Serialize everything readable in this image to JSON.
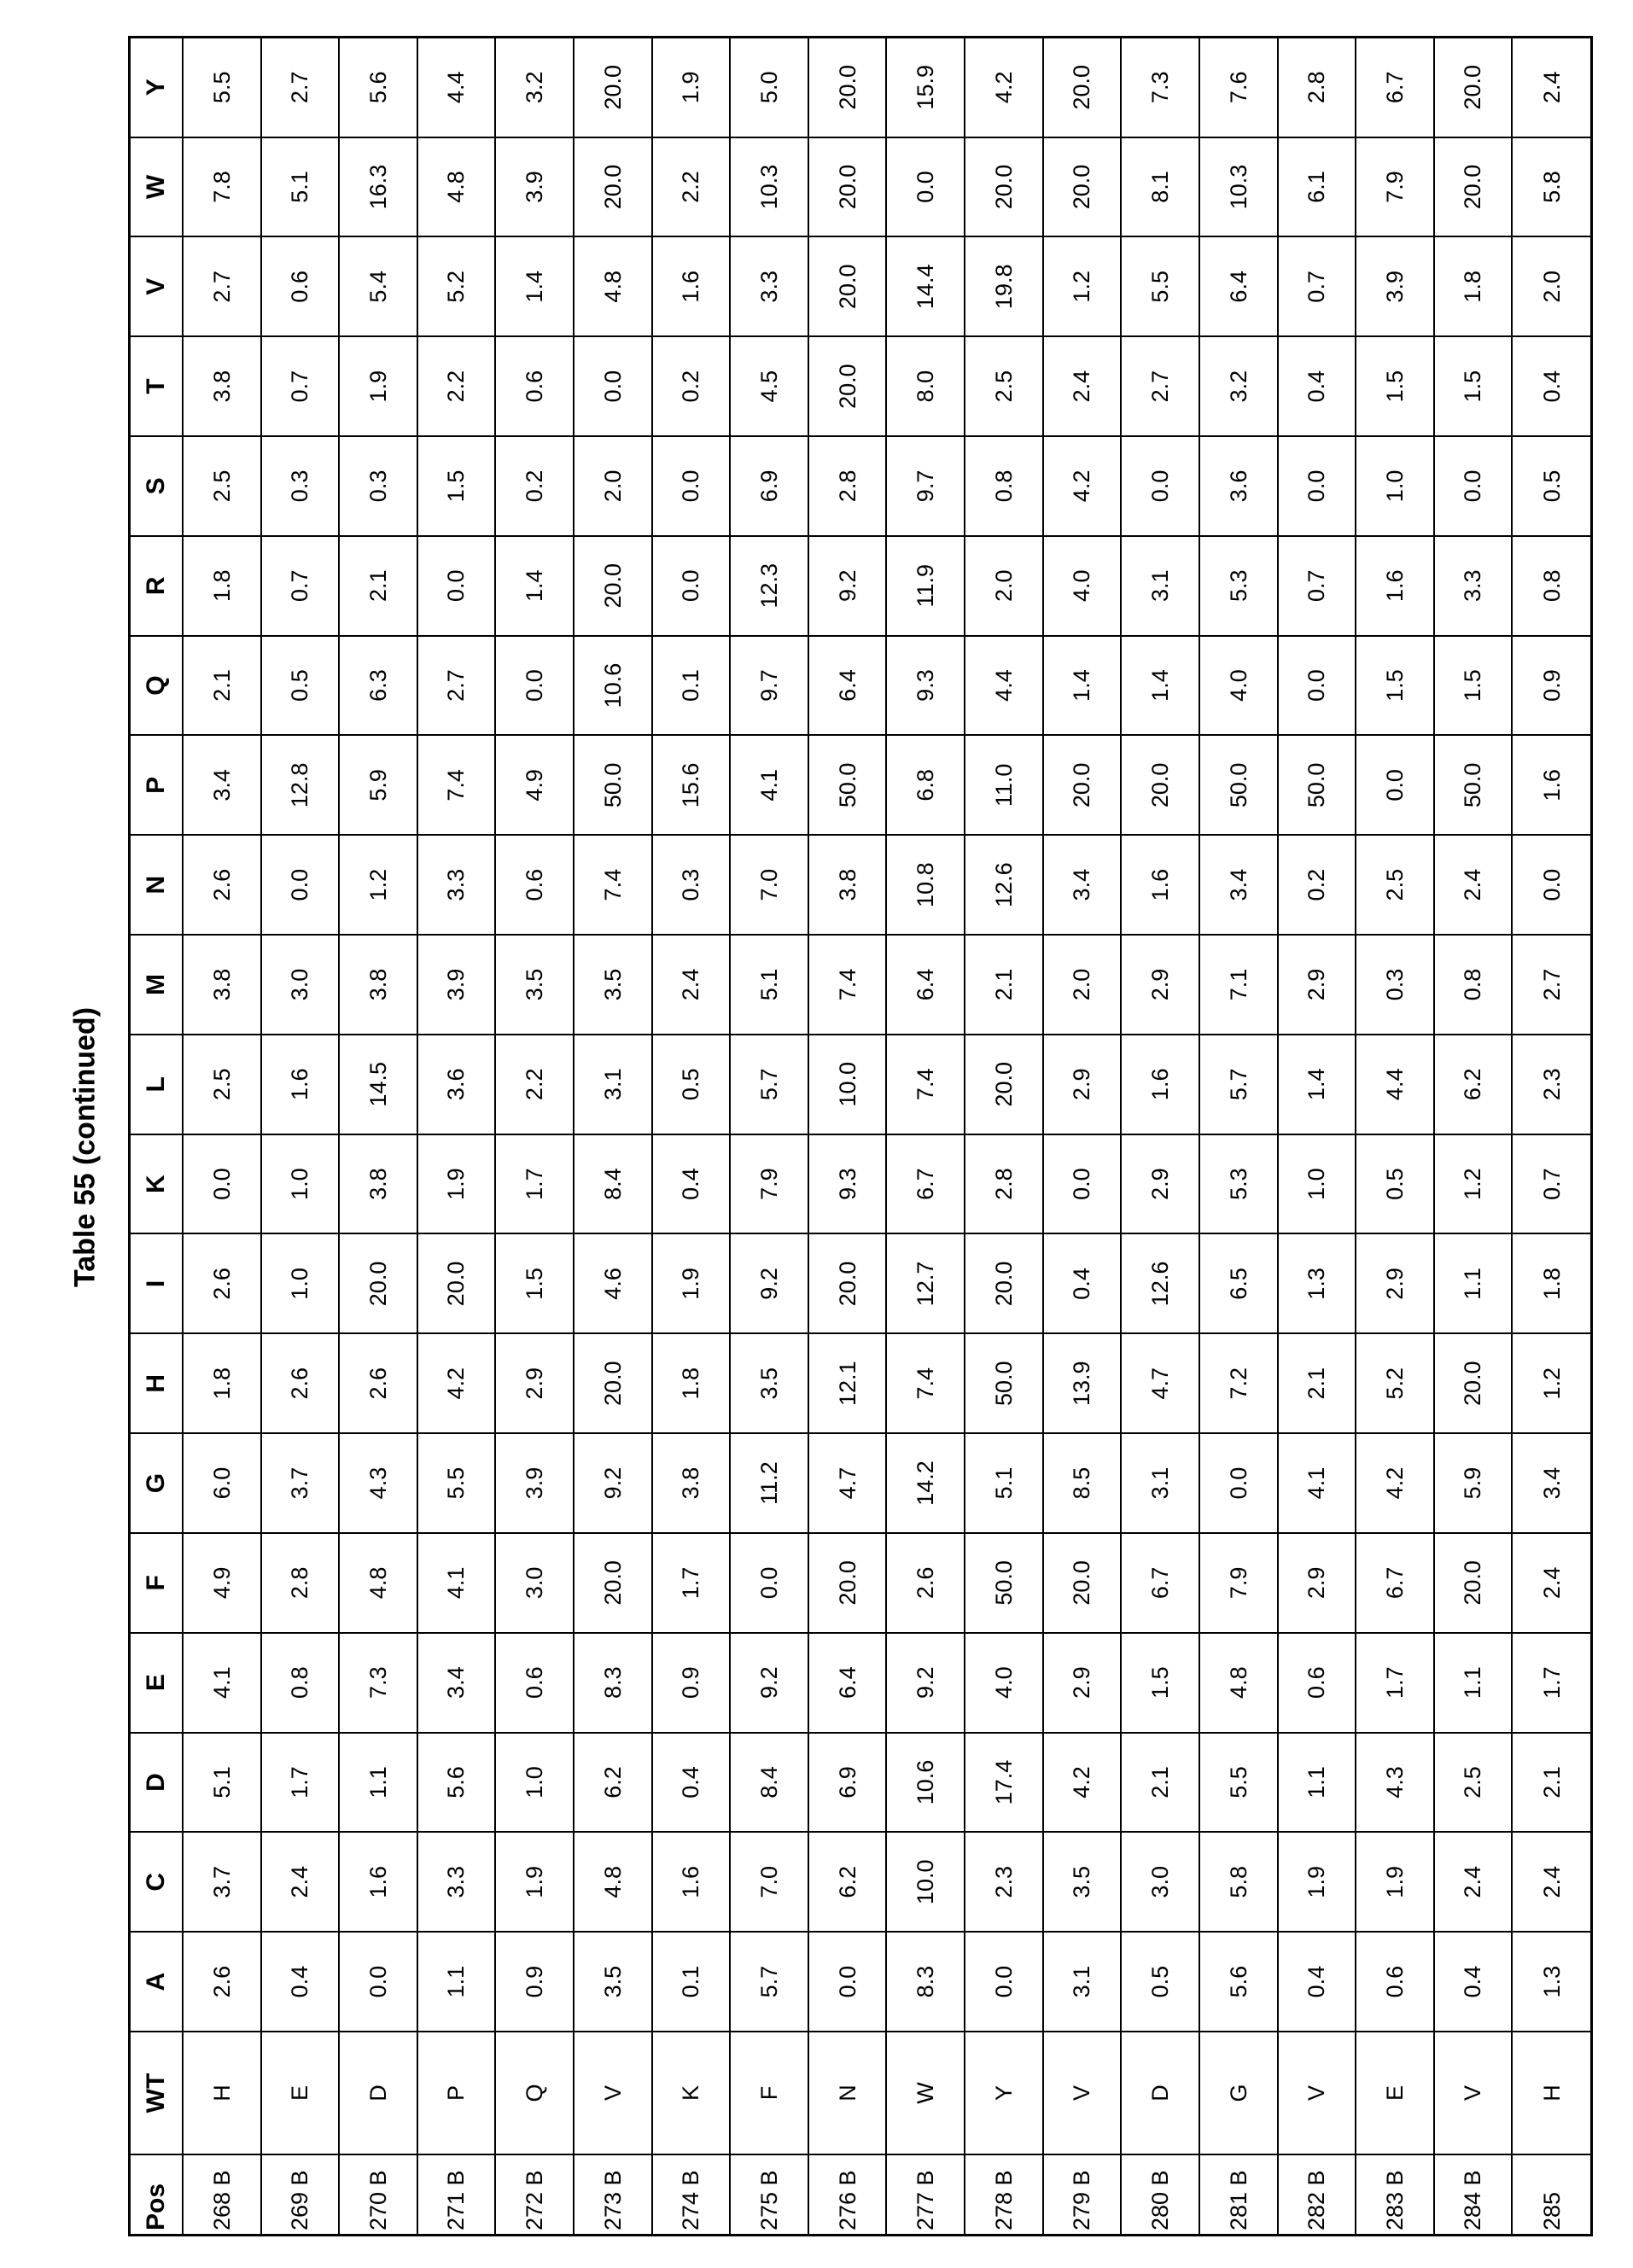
{
  "title": "Table 55 (continued)",
  "table": {
    "headers": [
      "Pos",
      "WT",
      "A",
      "C",
      "D",
      "E",
      "F",
      "G",
      "H",
      "I",
      "K",
      "L",
      "M",
      "N",
      "P",
      "Q",
      "R",
      "S",
      "T",
      "V",
      "W",
      "Y"
    ],
    "rows": [
      [
        "268 B",
        "H",
        "2.6",
        "3.7",
        "5.1",
        "4.1",
        "4.9",
        "6.0",
        "1.8",
        "2.6",
        "0.0",
        "2.5",
        "3.8",
        "2.6",
        "3.4",
        "2.1",
        "1.8",
        "2.5",
        "3.8",
        "2.7",
        "7.8",
        "5.5"
      ],
      [
        "269 B",
        "E",
        "0.4",
        "2.4",
        "1.7",
        "0.8",
        "2.8",
        "3.7",
        "2.6",
        "1.0",
        "1.0",
        "1.6",
        "3.0",
        "0.0",
        "12.8",
        "0.5",
        "0.7",
        "0.3",
        "0.7",
        "0.6",
        "5.1",
        "2.7"
      ],
      [
        "270 B",
        "D",
        "0.0",
        "1.6",
        "1.1",
        "7.3",
        "4.8",
        "4.3",
        "2.6",
        "20.0",
        "3.8",
        "14.5",
        "3.8",
        "1.2",
        "5.9",
        "6.3",
        "2.1",
        "0.3",
        "1.9",
        "5.4",
        "16.3",
        "5.6"
      ],
      [
        "271 B",
        "P",
        "1.1",
        "3.3",
        "5.6",
        "3.4",
        "4.1",
        "5.5",
        "4.2",
        "20.0",
        "1.9",
        "3.6",
        "3.9",
        "3.3",
        "7.4",
        "2.7",
        "0.0",
        "1.5",
        "2.2",
        "5.2",
        "4.8",
        "4.4"
      ],
      [
        "272 B",
        "Q",
        "0.9",
        "1.9",
        "1.0",
        "0.6",
        "3.0",
        "3.9",
        "2.9",
        "1.5",
        "1.7",
        "2.2",
        "3.5",
        "0.6",
        "4.9",
        "0.0",
        "1.4",
        "0.2",
        "0.6",
        "1.4",
        "3.9",
        "3.2"
      ],
      [
        "273 B",
        "V",
        "3.5",
        "4.8",
        "6.2",
        "8.3",
        "20.0",
        "9.2",
        "20.0",
        "4.6",
        "8.4",
        "3.1",
        "3.5",
        "7.4",
        "50.0",
        "10.6",
        "20.0",
        "2.0",
        "0.0",
        "4.8",
        "20.0",
        "20.0"
      ],
      [
        "274 B",
        "K",
        "0.1",
        "1.6",
        "0.4",
        "0.9",
        "1.7",
        "3.8",
        "1.8",
        "1.9",
        "0.4",
        "0.5",
        "2.4",
        "0.3",
        "15.6",
        "0.1",
        "0.0",
        "0.0",
        "0.2",
        "1.6",
        "2.2",
        "1.9"
      ],
      [
        "275 B",
        "F",
        "5.7",
        "7.0",
        "8.4",
        "9.2",
        "0.0",
        "11.2",
        "3.5",
        "9.2",
        "7.9",
        "5.7",
        "5.1",
        "7.0",
        "4.1",
        "9.7",
        "12.3",
        "6.9",
        "4.5",
        "3.3",
        "10.3",
        "5.0"
      ],
      [
        "276 B",
        "N",
        "0.0",
        "6.2",
        "6.9",
        "6.4",
        "20.0",
        "4.7",
        "12.1",
        "20.0",
        "9.3",
        "10.0",
        "7.4",
        "3.8",
        "50.0",
        "6.4",
        "9.2",
        "2.8",
        "20.0",
        "20.0",
        "20.0",
        "20.0"
      ],
      [
        "277 B",
        "W",
        "8.3",
        "10.0",
        "10.6",
        "9.2",
        "2.6",
        "14.2",
        "7.4",
        "12.7",
        "6.7",
        "7.4",
        "6.4",
        "10.8",
        "6.8",
        "9.3",
        "11.9",
        "9.7",
        "8.0",
        "14.4",
        "0.0",
        "15.9"
      ],
      [
        "278 B",
        "Y",
        "0.0",
        "2.3",
        "17.4",
        "4.0",
        "50.0",
        "5.1",
        "50.0",
        "20.0",
        "2.8",
        "20.0",
        "2.1",
        "12.6",
        "11.0",
        "4.4",
        "2.0",
        "0.8",
        "2.5",
        "19.8",
        "20.0",
        "4.2"
      ],
      [
        "279 B",
        "V",
        "3.1",
        "3.5",
        "4.2",
        "2.9",
        "20.0",
        "8.5",
        "13.9",
        "0.4",
        "0.0",
        "2.9",
        "2.0",
        "3.4",
        "20.0",
        "1.4",
        "4.0",
        "4.2",
        "2.4",
        "1.2",
        "20.0",
        "20.0"
      ],
      [
        "280 B",
        "D",
        "0.5",
        "3.0",
        "2.1",
        "1.5",
        "6.7",
        "3.1",
        "4.7",
        "12.6",
        "2.9",
        "1.6",
        "2.9",
        "1.6",
        "20.0",
        "1.4",
        "3.1",
        "0.0",
        "2.7",
        "5.5",
        "8.1",
        "7.3"
      ],
      [
        "281 B",
        "G",
        "5.6",
        "5.8",
        "5.5",
        "4.8",
        "7.9",
        "0.0",
        "7.2",
        "6.5",
        "5.3",
        "5.7",
        "7.1",
        "3.4",
        "50.0",
        "4.0",
        "5.3",
        "3.6",
        "3.2",
        "6.4",
        "10.3",
        "7.6"
      ],
      [
        "282 B",
        "V",
        "0.4",
        "1.9",
        "1.1",
        "0.6",
        "2.9",
        "4.1",
        "2.1",
        "1.3",
        "1.0",
        "1.4",
        "2.9",
        "0.2",
        "50.0",
        "0.0",
        "0.7",
        "0.0",
        "0.4",
        "0.7",
        "6.1",
        "2.8"
      ],
      [
        "283 B",
        "E",
        "0.6",
        "1.9",
        "4.3",
        "1.7",
        "6.7",
        "4.2",
        "5.2",
        "2.9",
        "0.5",
        "4.4",
        "0.3",
        "2.5",
        "0.0",
        "1.5",
        "1.6",
        "1.0",
        "1.5",
        "3.9",
        "7.9",
        "6.7"
      ],
      [
        "284 B",
        "V",
        "0.4",
        "2.4",
        "2.5",
        "1.1",
        "20.0",
        "5.9",
        "20.0",
        "1.1",
        "1.2",
        "6.2",
        "0.8",
        "2.4",
        "50.0",
        "1.5",
        "3.3",
        "0.0",
        "1.5",
        "1.8",
        "20.0",
        "20.0"
      ],
      [
        "285",
        "H",
        "1.3",
        "2.4",
        "2.1",
        "1.7",
        "2.4",
        "3.4",
        "1.2",
        "1.8",
        "0.7",
        "2.3",
        "2.7",
        "0.0",
        "1.6",
        "0.9",
        "0.8",
        "0.5",
        "0.4",
        "2.0",
        "5.8",
        "2.4"
      ]
    ]
  }
}
